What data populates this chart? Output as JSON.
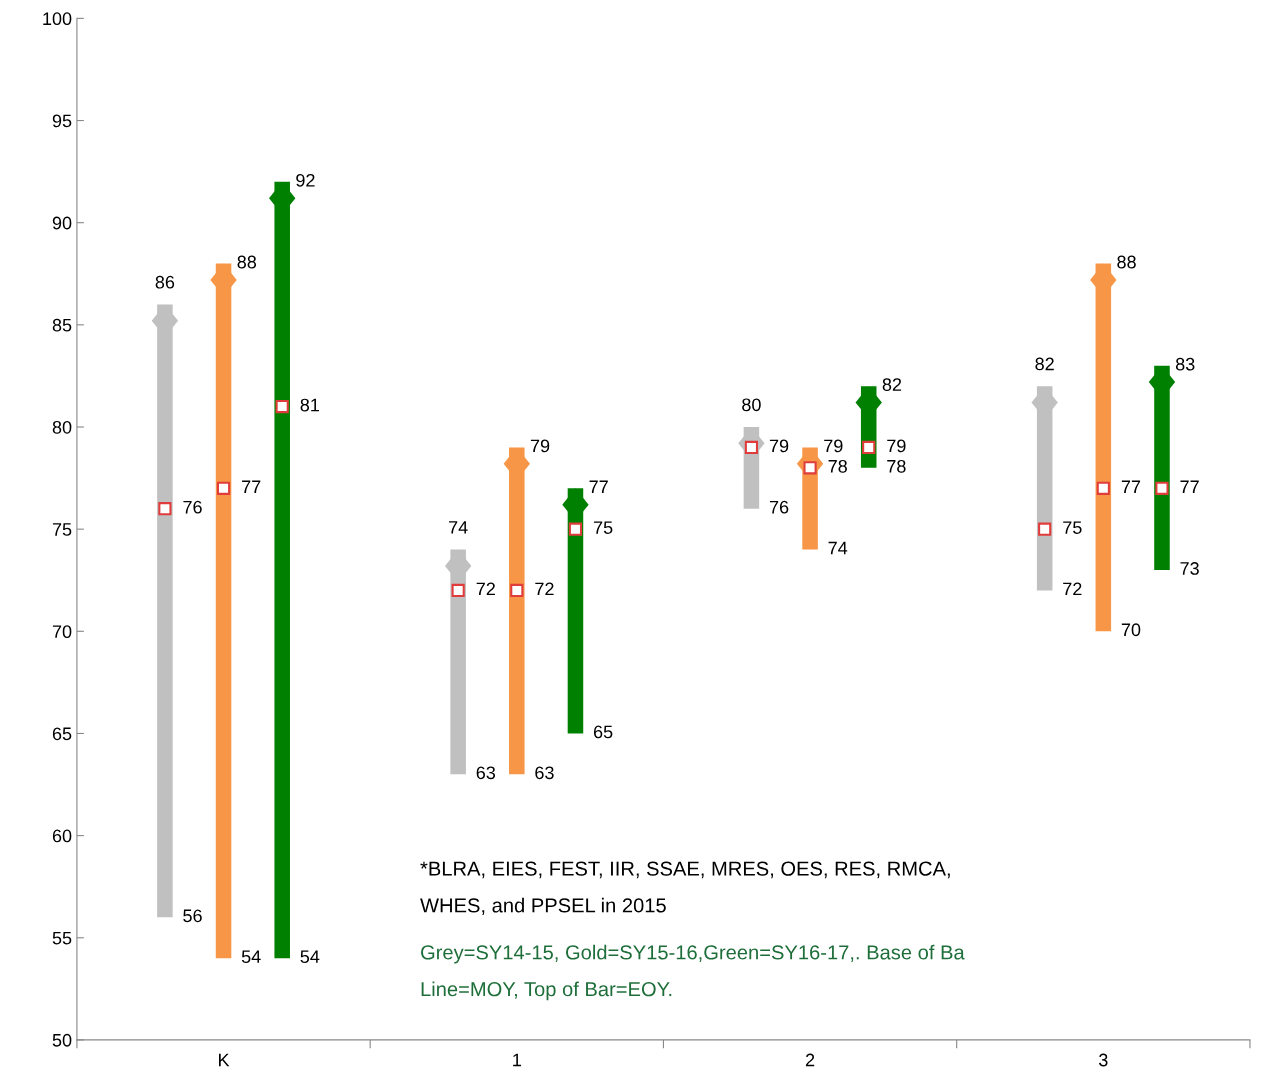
{
  "chart_data": {
    "type": "bar",
    "xlim": [
      -0.5,
      3.5
    ],
    "ylim": [
      50,
      100
    ],
    "yticks": [
      50,
      55,
      60,
      65,
      70,
      75,
      80,
      85,
      90,
      95,
      100
    ],
    "grid": false,
    "legend": false,
    "xticks": [
      {
        "value": -0.5,
        "label": null
      },
      {
        "value": 0,
        "label": "K"
      },
      {
        "value": 0.5,
        "label": null
      },
      {
        "value": 1,
        "label": "1"
      },
      {
        "value": 1.5,
        "label": null
      },
      {
        "value": 2,
        "label": "2"
      },
      {
        "value": 2.5,
        "label": null
      },
      {
        "value": 3,
        "label": "3"
      },
      {
        "value": 3.5,
        "label": null
      }
    ],
    "series": [
      {
        "type": "bar",
        "color": "#c0c0c0",
        "x": [
          -0.2,
          0.8,
          1.8,
          2.8
        ],
        "base": [
          56,
          63,
          76,
          72
        ],
        "values": [
          30,
          11,
          4,
          10
        ],
        "value_labels": [
          "86",
          "74",
          "80",
          "82"
        ]
      },
      {
        "type": "bar",
        "color": "#f79646",
        "x": [
          0,
          1,
          2,
          3
        ],
        "base": [
          54,
          63,
          74,
          70
        ],
        "values": [
          34,
          16,
          5,
          18
        ],
        "value_labels": [
          "88",
          "79",
          "79",
          "88"
        ]
      },
      {
        "type": "bar",
        "color": "#008000",
        "x": [
          0.2,
          1.2,
          2.2,
          3.2
        ],
        "base": [
          54,
          65,
          78,
          73
        ],
        "values": [
          38,
          12,
          4,
          10
        ],
        "value_labels": [
          "92",
          "77",
          "82",
          "83"
        ]
      },
      {
        "type": "scatter",
        "color": "#e03c3c",
        "marker": "square",
        "data_labels": true,
        "x": [
          -0.2,
          0.8,
          1.8,
          2.8
        ],
        "values": [
          76,
          72,
          79,
          75
        ]
      },
      {
        "type": "scatter",
        "color": "#e03c3c",
        "marker": "square",
        "data_labels": true,
        "x": [
          0,
          1,
          2,
          3
        ],
        "values": [
          77,
          72,
          78,
          77
        ]
      },
      {
        "type": "scatter",
        "color": "#e03c3c",
        "marker": "square",
        "data_labels": true,
        "x": [
          0.2,
          1.2,
          2.2,
          3.2
        ],
        "values": [
          81,
          75,
          79,
          77
        ]
      }
    ],
    "annotations": [
      {
        "text": "56",
        "x": -0.2,
        "y": 56
      },
      {
        "text": "54",
        "x": 0,
        "y": 54
      },
      {
        "text": "54",
        "x": 0.2,
        "y": 54
      },
      {
        "text": "63",
        "x": 0.8,
        "y": 63
      },
      {
        "text": "63",
        "x": 1,
        "y": 63
      },
      {
        "text": "65",
        "x": 1.2,
        "y": 65
      },
      {
        "text": "76",
        "x": 1.8,
        "y": 76
      },
      {
        "text": "74",
        "x": 2,
        "y": 74
      },
      {
        "text": "78",
        "x": 2.2,
        "y": 78
      },
      {
        "text": "72",
        "x": 2.8,
        "y": 72
      },
      {
        "text": "70",
        "x": 3,
        "y": 70
      },
      {
        "text": "73",
        "x": 3.2,
        "y": 73
      },
      "*BLRA, EIES, FEST, IIR, SSAE, MRES, OES, RES, RMCA,",
      "WHES, and PPSEL in 2015",
      "Grey=SY14-15, Gold=SY15-16,Green=SY16-17,. Base of Ba",
      "Line=MOY, Top of Bar=EOY."
    ]
  }
}
